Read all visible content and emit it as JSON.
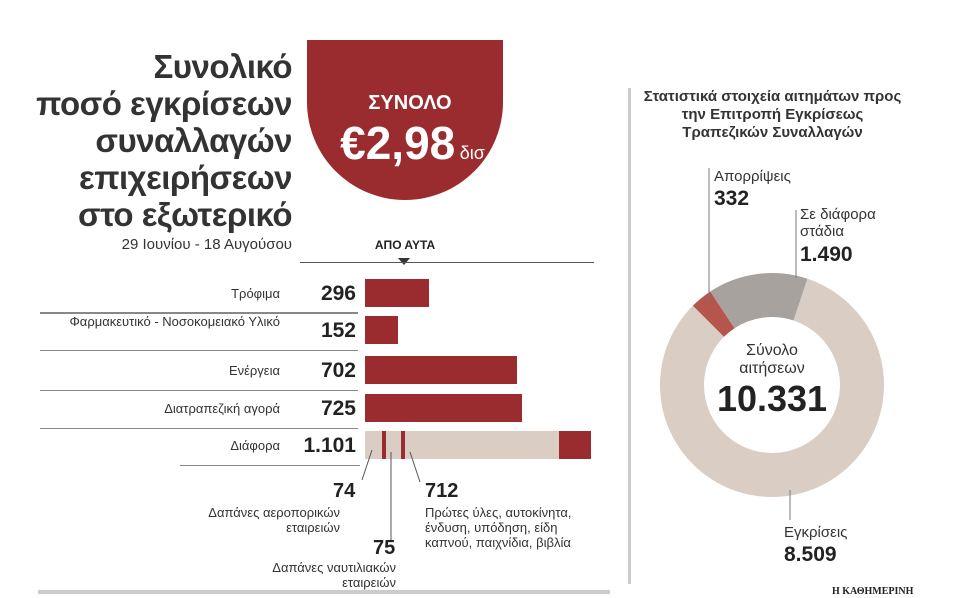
{
  "header": {
    "title_lines": [
      "Συνολικό",
      "ποσό εγκρίσεων",
      "συναλλαγών",
      "επιχειρήσεων",
      "στο εξωτερικό"
    ],
    "subtitle": "29 Ιουνίου - 18 Αυγούσου",
    "total_label": "ΣΥΝΟΛΟ",
    "total_value": "€2,98",
    "total_unit": "δισ.",
    "of_which": "ΑΠΟ ΑΥΤΑ"
  },
  "source": "Η ΚΑΘΗΜΕΡΙΝΗ",
  "colors": {
    "dark_red": "#9a2b2e",
    "beige": "#d9cdc4",
    "gray": "#a8a29f",
    "reject": "#b4564b"
  },
  "chart_data": [
    {
      "type": "bar",
      "title": "Συνολικό ποσό εγκρίσεων συναλλαγών επιχειρήσεων στο εξωτερικό",
      "unit": "εκατ. €",
      "categories": [
        "Τρόφιμα",
        "Φαρμακευτικό - Νοσοκομειακό Υλικό",
        "Ενέργεια",
        "Διατραπεζική αγορά",
        "Διάφορα"
      ],
      "values": [
        296,
        152,
        702,
        725,
        1101
      ],
      "value_labels": [
        "296",
        "152",
        "702",
        "725",
        "1.101"
      ],
      "breakdown_of_last": [
        {
          "label": "Δαπάνες αεροπορικών εταιρειών",
          "value": 74,
          "value_label": "74"
        },
        {
          "label": "Δαπάνες ναυτιλιακών εταιρειών",
          "value": 75,
          "value_label": "75"
        },
        {
          "label": "Πρώτες ύλες, αυτοκίνητα, ένδυση, υπόδηση, είδη καπνού, παιχνίδια, βιβλία",
          "value": 712,
          "value_label": "712"
        }
      ]
    },
    {
      "type": "pie",
      "title": "Στατιστικά στοιχεία αιτημάτων προς την Επιτροπή Εγκρίσεως Τραπεζικών Συναλλαγών",
      "center_label": "Σύνολο αιτήσεων",
      "center_value": "10.331",
      "slices": [
        {
          "label": "Απορρίψεις",
          "value": 332,
          "value_label": "332"
        },
        {
          "label": "Σε διάφορα στάδια",
          "value": 1490,
          "value_label": "1.490"
        },
        {
          "label": "Εγκρίσεις",
          "value": 8509,
          "value_label": "8.509"
        }
      ]
    }
  ]
}
